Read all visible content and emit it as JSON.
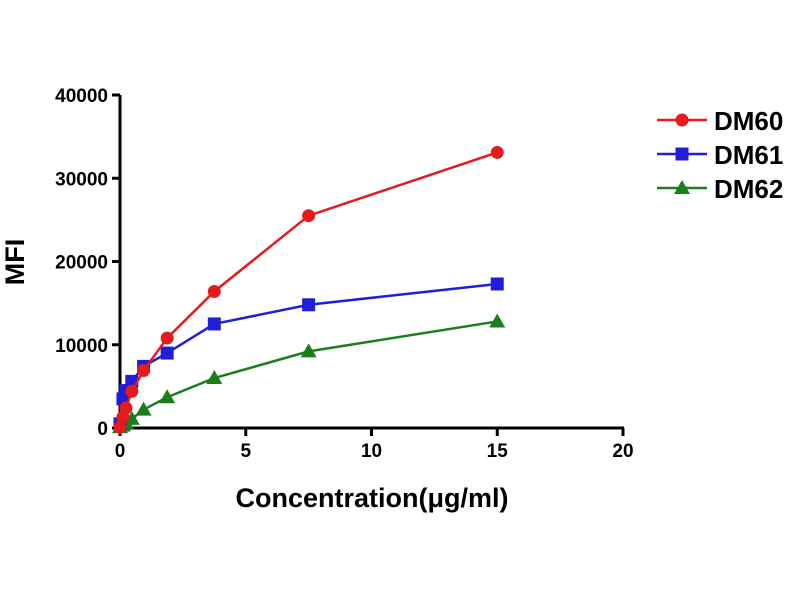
{
  "chart_data": {
    "type": "line",
    "title": "",
    "xlabel": "Concentration(μg/ml)",
    "ylabel": "MFI",
    "xlim": [
      0,
      20
    ],
    "ylim": [
      0,
      40000
    ],
    "xticks": [
      "0",
      "5",
      "10",
      "15",
      "20"
    ],
    "yticks": [
      "0",
      "10000",
      "20000",
      "30000",
      "40000"
    ],
    "grid": false,
    "legend_position": "right",
    "x": [
      0,
      0.117,
      0.234,
      0.469,
      0.9375,
      1.875,
      3.75,
      7.5,
      15
    ],
    "series": [
      {
        "name": "DM60",
        "color": "#e41a1c",
        "marker": "circle",
        "values": [
          100,
          1300,
          2400,
          4400,
          6900,
          10800,
          16400,
          25500,
          33100
        ]
      },
      {
        "name": "DM61",
        "color": "#1f1fd8",
        "marker": "square",
        "values": [
          500,
          3500,
          4500,
          5600,
          7400,
          9000,
          12500,
          14800,
          17300
        ]
      },
      {
        "name": "DM62",
        "color": "#1a7f1a",
        "marker": "triangle",
        "values": [
          100,
          300,
          600,
          1100,
          2200,
          3700,
          6000,
          9200,
          12800
        ]
      }
    ]
  }
}
